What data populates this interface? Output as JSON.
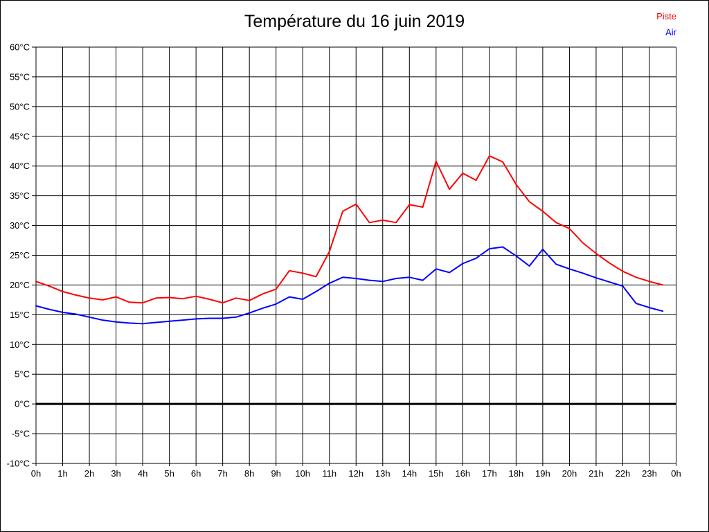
{
  "title": "Température du 16 juin 2019",
  "chart_data": {
    "type": "line",
    "title": "Température du 16 juin 2019",
    "x_unit": "hour of day",
    "xlim": [
      0,
      24
    ],
    "ylim": [
      -10,
      60
    ],
    "y_tick_step": 5,
    "grid": true,
    "grid_color": "#000000",
    "zero_line_bold": true,
    "background": "#ffffff",
    "legend_position": "top-right",
    "x_tick_labels": [
      "0h",
      "1h",
      "2h",
      "3h",
      "4h",
      "5h",
      "6h",
      "7h",
      "8h",
      "9h",
      "10h",
      "11h",
      "12h",
      "13h",
      "14h",
      "15h",
      "16h",
      "17h",
      "18h",
      "19h",
      "20h",
      "21h",
      "22h",
      "23h",
      "0h"
    ],
    "y_tick_labels": [
      "60°C",
      "55°C",
      "50°C",
      "45°C",
      "40°C",
      "35°C",
      "30°C",
      "25°C",
      "20°C",
      "15°C",
      "10°C",
      "5°C",
      "0°C",
      "-5°C",
      "-10°C"
    ],
    "x": [
      0,
      0.5,
      1,
      1.5,
      2,
      2.5,
      3,
      3.5,
      4,
      4.5,
      5,
      5.5,
      6,
      6.5,
      7,
      7.5,
      8,
      8.5,
      9,
      9.5,
      10,
      10.5,
      11,
      11.5,
      12,
      12.5,
      13,
      13.5,
      14,
      14.5,
      15,
      15.5,
      16,
      16.5,
      17,
      17.5,
      18,
      18.5,
      19,
      19.5,
      20,
      20.5,
      21,
      21.5,
      22,
      22.5,
      23,
      23.5
    ],
    "series": [
      {
        "name": "Piste",
        "color": "#ff0000",
        "values": [
          20.6,
          19.8,
          18.9,
          18.3,
          17.8,
          17.5,
          18.0,
          17.1,
          17.0,
          17.8,
          17.9,
          17.7,
          18.1,
          17.6,
          17.0,
          17.8,
          17.4,
          18.5,
          19.3,
          22.4,
          22.0,
          21.4,
          25.6,
          32.4,
          33.6,
          30.5,
          30.9,
          30.5,
          33.5,
          33.1,
          40.8,
          36.1,
          38.8,
          37.6,
          41.7,
          40.7,
          36.9,
          34.0,
          32.4,
          30.5,
          29.5,
          27.1,
          25.3,
          23.7,
          22.3,
          21.3,
          20.6,
          20.0
        ]
      },
      {
        "name": "Air",
        "color": "#0000ff",
        "values": [
          16.5,
          15.9,
          15.4,
          15.1,
          14.6,
          14.1,
          13.8,
          13.6,
          13.5,
          13.7,
          13.9,
          14.1,
          14.3,
          14.4,
          14.4,
          14.6,
          15.3,
          16.1,
          16.8,
          18.0,
          17.6,
          18.9,
          20.3,
          21.3,
          21.1,
          20.8,
          20.6,
          21.1,
          21.3,
          20.8,
          22.7,
          22.1,
          23.6,
          24.5,
          26.1,
          26.4,
          24.9,
          23.2,
          26.0,
          23.5,
          22.7,
          22.0,
          21.2,
          20.5,
          19.8,
          16.9,
          16.2,
          15.6
        ]
      }
    ]
  }
}
